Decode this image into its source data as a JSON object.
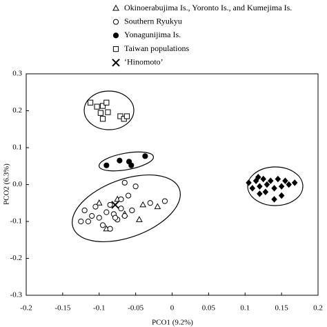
{
  "chart_data": {
    "type": "scatter",
    "xlabel": "PCO1 (9.2%)",
    "ylabel": "PCO2 (6.3%)",
    "xlim": [
      -0.2,
      0.2
    ],
    "ylim": [
      -0.3,
      0.3
    ],
    "xticks": [
      -0.2,
      -0.15,
      -0.1,
      -0.05,
      0,
      0.05,
      0.1,
      0.15,
      0.2
    ],
    "yticks": [
      0.3,
      0.2,
      0.1,
      {
        "value": 0,
        "label": "0.0"
      },
      -0.1,
      -0.2,
      -0.3
    ],
    "series": [
      {
        "name": "Okinoerabujima Is., Yoronto Is., and Kumejima Is.",
        "marker": "triangle-open",
        "color": "#000000",
        "x": [
          -0.1,
          -0.09,
          -0.045,
          -0.04,
          -0.02,
          -0.065,
          -0.075
        ],
        "y": [
          -0.05,
          -0.12,
          -0.095,
          -0.055,
          -0.06,
          -0.08,
          -0.04
        ]
      },
      {
        "name": "Southern Ryukyu",
        "marker": "circle-open",
        "color": "#000000",
        "x": [
          -0.12,
          -0.115,
          -0.11,
          -0.105,
          -0.1,
          -0.095,
          -0.09,
          -0.085,
          -0.08,
          -0.075,
          -0.07,
          -0.065,
          -0.06,
          -0.055,
          -0.05,
          -0.03,
          -0.01,
          -0.125,
          -0.085,
          -0.07,
          -0.078,
          -0.065
        ],
        "y": [
          -0.07,
          -0.1,
          -0.085,
          -0.06,
          -0.09,
          -0.11,
          -0.075,
          -0.055,
          -0.08,
          -0.095,
          -0.065,
          -0.085,
          -0.03,
          -0.07,
          -0.005,
          -0.05,
          -0.045,
          -0.1,
          -0.12,
          -0.04,
          -0.09,
          0.005
        ]
      },
      {
        "name": "Yonagunijima Is.",
        "marker": "circle-filled",
        "color": "#000000",
        "x": [
          -0.09,
          -0.072,
          -0.059,
          -0.056,
          -0.037
        ],
        "y": [
          0.052,
          0.065,
          0.062,
          0.052,
          0.077
        ]
      },
      {
        "name": "Taiwan populations",
        "marker": "square-open",
        "color": "#000000",
        "x": [
          -0.112,
          -0.103,
          -0.095,
          -0.09,
          -0.098,
          -0.095,
          -0.088,
          -0.071,
          -0.066,
          -0.062
        ],
        "y": [
          0.222,
          0.211,
          0.213,
          0.222,
          0.194,
          0.178,
          0.196,
          0.185,
          0.178,
          0.185
        ]
      },
      {
        "name": "‘Hinomoto’",
        "marker": "x",
        "color": "#000000",
        "x": [
          -0.078
        ],
        "y": [
          -0.055
        ]
      },
      {
        "marker": "diamond-filled",
        "color": "#000000",
        "x": [
          0.105,
          0.11,
          0.115,
          0.12,
          0.125,
          0.13,
          0.128,
          0.135,
          0.14,
          0.145,
          0.15,
          0.155,
          0.16,
          0.168,
          0.14,
          0.12,
          0.15,
          0.118
        ],
        "y": [
          0.005,
          -0.01,
          0.01,
          -0.005,
          0.015,
          0,
          -0.02,
          0.01,
          -0.01,
          0.015,
          -0.005,
          0.01,
          0,
          0.005,
          -0.04,
          -0.025,
          -0.03,
          0.02
        ]
      }
    ]
  }
}
